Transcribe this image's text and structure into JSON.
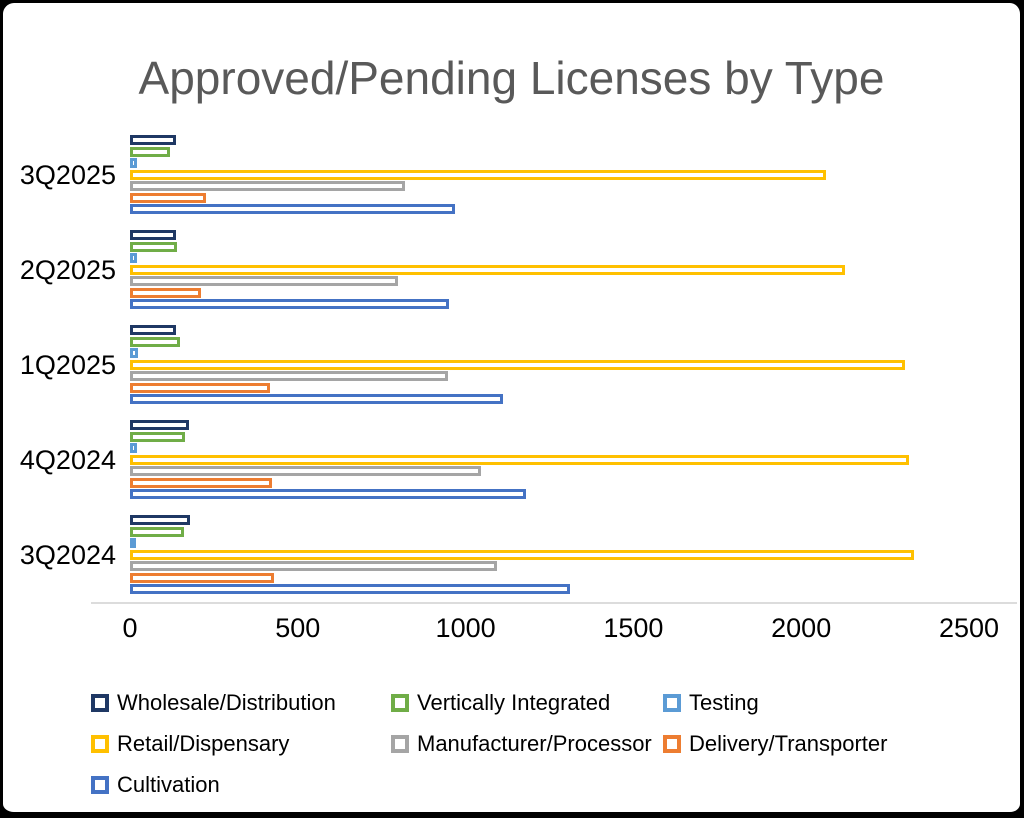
{
  "title": "Approved/Pending Licenses by Type",
  "chart_data": {
    "type": "bar",
    "orientation": "horizontal",
    "title": "Approved/Pending Licenses by Type",
    "categories": [
      "3Q2025",
      "2Q2025",
      "1Q2025",
      "4Q2024",
      "3Q2024"
    ],
    "series": [
      {
        "name": "Wholesale/Distribution",
        "color": "#1F3864",
        "values": [
          138,
          136,
          136,
          177,
          178
        ]
      },
      {
        "name": "Vertically Integrated",
        "color": "#70AD47",
        "values": [
          120,
          139,
          149,
          164,
          160
        ]
      },
      {
        "name": "Testing",
        "color": "#5B9BD5",
        "values": [
          21,
          22,
          25,
          21,
          12
        ]
      },
      {
        "name": "Retail/Dispensary",
        "color": "#FFC000",
        "values": [
          2075,
          2130,
          2310,
          2320,
          2335
        ]
      },
      {
        "name": "Manufacturer/Processor",
        "color": "#A5A5A5",
        "values": [
          818,
          800,
          947,
          1047,
          1095
        ]
      },
      {
        "name": "Delivery/Transporter",
        "color": "#ED7D31",
        "values": [
          225,
          213,
          416,
          423,
          428
        ]
      },
      {
        "name": "Cultivation",
        "color": "#4472C4",
        "values": [
          968,
          950,
          1110,
          1180,
          1310
        ]
      }
    ],
    "xlim": [
      0,
      2500
    ],
    "x_tick_labels": [
      "0",
      "500",
      "1000",
      "1500",
      "2000",
      "2500"
    ],
    "x_tick_values": [
      0,
      500,
      1000,
      1500,
      2000,
      2500
    ],
    "grid": false,
    "bar_style": "hollow bars: white fill with thick colored outline",
    "legend_position": "bottom-left"
  },
  "legend": {
    "rows": [
      [
        "Wholesale/Distribution",
        "Vertically Integrated",
        "Testing"
      ],
      [
        "Retail/Dispensary",
        "Manufacturer/Processor",
        "Delivery/Transporter"
      ],
      [
        "Cultivation"
      ]
    ]
  }
}
